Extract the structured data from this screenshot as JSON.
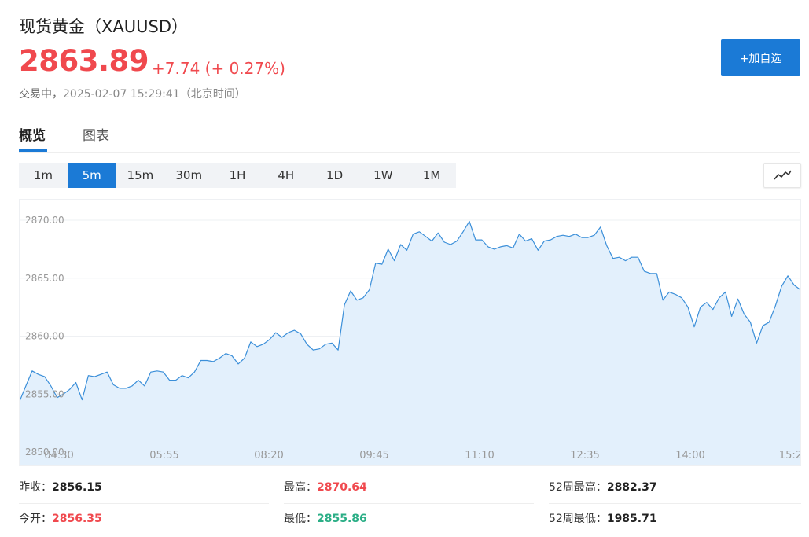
{
  "header": {
    "title": "现货黄金（XAUUSD）",
    "price": "2863.89",
    "change": "+7.74 (+ 0.27%)",
    "status_label": "交易中，",
    "timestamp": "2025-02-07 15:29:41（北京时间）",
    "add_button_label": "+加自选"
  },
  "tabs": [
    {
      "label": "概览",
      "active": true
    },
    {
      "label": "图表",
      "active": false
    }
  ],
  "periods": [
    "1m",
    "5m",
    "15m",
    "30m",
    "1H",
    "4H",
    "1D",
    "1W",
    "1M"
  ],
  "active_period": "5m",
  "chart_type_icon": "line-chart-icon",
  "colors": {
    "accent": "#1b7ad6",
    "up": "#f0494e",
    "down": "#2bae86",
    "area_fill": "#e3f0fc",
    "line": "#3b8fd9"
  },
  "chart_data": {
    "type": "area",
    "y_ticks": [
      "2850.00",
      "2855.00",
      "2860.00",
      "2865.00",
      "2870.00"
    ],
    "x_ticks": [
      "04:30",
      "05:55",
      "08:20",
      "09:45",
      "11:10",
      "12:35",
      "14:00",
      "15:2"
    ],
    "ylim": [
      2850,
      2871.2
    ],
    "grid": true,
    "values": [
      2854.4,
      2855.7,
      2857.0,
      2856.7,
      2856.5,
      2855.7,
      2854.7,
      2855.0,
      2855.4,
      2856.0,
      2854.5,
      2856.6,
      2856.5,
      2856.7,
      2856.9,
      2855.8,
      2855.5,
      2855.5,
      2855.7,
      2856.2,
      2855.7,
      2856.9,
      2857.0,
      2856.9,
      2856.2,
      2856.2,
      2856.6,
      2856.4,
      2856.9,
      2857.9,
      2857.9,
      2857.8,
      2858.1,
      2858.5,
      2858.3,
      2857.6,
      2858.1,
      2859.5,
      2859.1,
      2859.3,
      2859.7,
      2860.3,
      2859.9,
      2860.3,
      2860.5,
      2860.2,
      2859.3,
      2858.8,
      2858.9,
      2859.3,
      2859.4,
      2858.8,
      2862.7,
      2863.9,
      2863.1,
      2863.3,
      2864.0,
      2866.3,
      2866.2,
      2867.5,
      2866.5,
      2867.9,
      2867.4,
      2868.8,
      2869.0,
      2868.6,
      2868.2,
      2868.9,
      2868.1,
      2867.9,
      2868.2,
      2869.0,
      2869.9,
      2868.3,
      2868.3,
      2867.7,
      2867.5,
      2867.7,
      2867.8,
      2867.6,
      2868.8,
      2868.2,
      2868.4,
      2867.4,
      2868.2,
      2868.3,
      2868.6,
      2868.7,
      2868.6,
      2868.8,
      2868.5,
      2868.5,
      2868.7,
      2869.4,
      2867.8,
      2866.7,
      2866.8,
      2866.5,
      2866.8,
      2866.8,
      2865.6,
      2865.4,
      2865.4,
      2863.1,
      2863.8,
      2863.6,
      2863.3,
      2862.5,
      2860.8,
      2862.5,
      2862.9,
      2862.3,
      2863.3,
      2863.8,
      2861.7,
      2863.2,
      2861.9,
      2861.2,
      2859.4,
      2860.9,
      2861.2,
      2862.6,
      2864.3,
      2865.2,
      2864.4,
      2864.0
    ]
  },
  "stats": {
    "prev_close_label": "昨收：",
    "prev_close": "2856.15",
    "open_label": "今开：",
    "open": "2856.35",
    "high_label": "最高：",
    "high": "2870.64",
    "low_label": "最低：",
    "low": "2855.86",
    "wk52_high_label": "52周最高：",
    "wk52_high": "2882.37",
    "wk52_low_label": "52周最低：",
    "wk52_low": "1985.71"
  }
}
